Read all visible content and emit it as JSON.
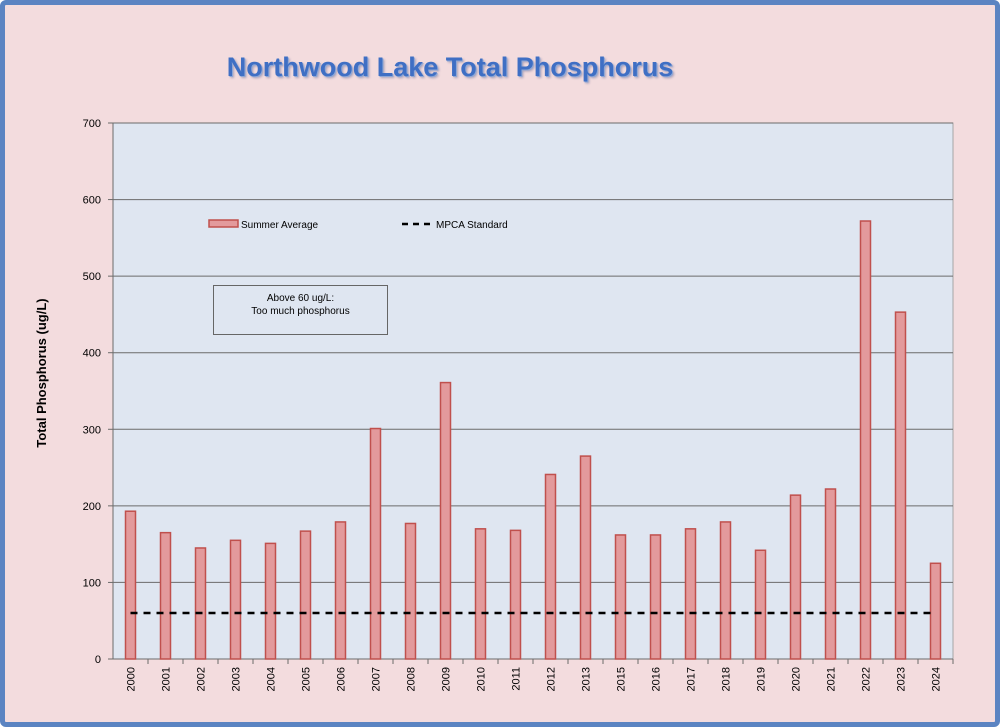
{
  "chart_data": {
    "type": "bar",
    "title": "Northwood Lake Total Phosphorus",
    "ylabel": "Total Phosphorus (ug/L)",
    "xlabel": "",
    "ylim": [
      0,
      700
    ],
    "yticks": [
      0,
      100,
      200,
      300,
      400,
      500,
      600,
      700
    ],
    "grid": true,
    "categories": [
      "2000",
      "2001",
      "2002",
      "2003",
      "2004",
      "2005",
      "2006",
      "2007",
      "2008",
      "2009",
      "2010",
      "2011",
      "2012",
      "2013",
      "2015",
      "2016",
      "2017",
      "2018",
      "2019",
      "2020",
      "2021",
      "2022",
      "2023",
      "2024"
    ],
    "series": [
      {
        "name": "Summer Average",
        "values": [
          193,
          165,
          145,
          155,
          151,
          167,
          179,
          301,
          177,
          361,
          170,
          168,
          241,
          265,
          162,
          162,
          170,
          179,
          142,
          214,
          222,
          572,
          453,
          125
        ],
        "color": "#e39a9c",
        "edge_color": "#c0504d"
      },
      {
        "name": "MPCA Standard",
        "type": "line",
        "style": "dashed",
        "value": 60,
        "color": "#000000"
      }
    ],
    "annotation": "Above 60 ug/L:\nToo much phosphorus",
    "annotation_lines": [
      "Above 60 ug/L:",
      "Too much phosphorus"
    ],
    "legend_placement": "top-left",
    "plot_background": "#dfe6f1",
    "frame_background": "#f3dcde",
    "frame_border": "#5b84c2"
  }
}
